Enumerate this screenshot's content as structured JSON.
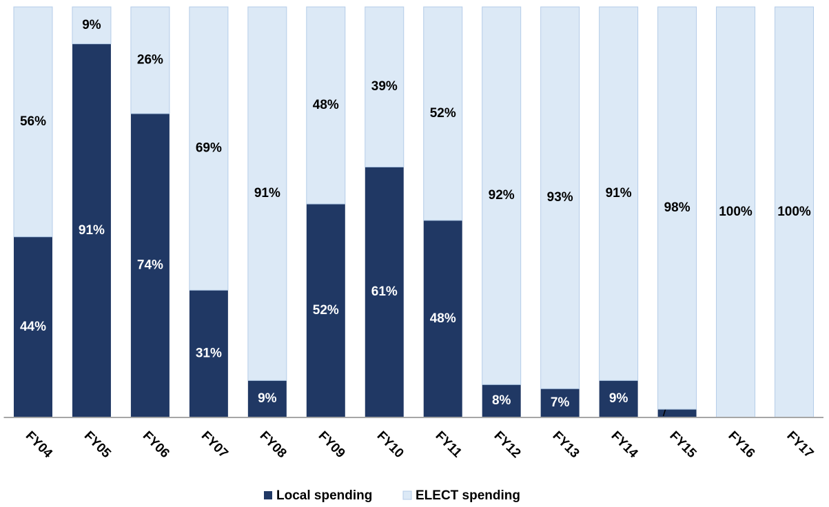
{
  "chart_data": {
    "type": "stacked_bar",
    "categories": [
      "FY04",
      "FY05",
      "FY06",
      "FY07",
      "FY08",
      "FY09",
      "FY10",
      "FY11",
      "FY12",
      "FY13",
      "FY14",
      "FY15",
      "FY16",
      "FY17"
    ],
    "series": [
      {
        "name": "Local spending",
        "color": "#203864",
        "label_color": "#ffffff",
        "values": [
          44,
          91,
          74,
          31,
          9,
          52,
          61,
          48,
          8,
          7,
          9,
          2,
          0,
          0
        ],
        "value_labels": [
          "44%",
          "91%",
          "74%",
          "31%",
          "9%",
          "52%",
          "61%",
          "48%",
          "8%",
          "7%",
          "9%",
          "2%",
          null,
          null
        ]
      },
      {
        "name": "ELECT spending",
        "color": "#dce9f6",
        "label_color": "#000000",
        "values": [
          56,
          9,
          26,
          69,
          91,
          48,
          39,
          52,
          92,
          93,
          91,
          98,
          100,
          100
        ],
        "value_labels": [
          "56%",
          "9%",
          "26%",
          "69%",
          "91%",
          "48%",
          "39%",
          "52%",
          "92%",
          "93%",
          "91%",
          "98%",
          "100%",
          "100%"
        ]
      }
    ],
    "ylim": [
      0,
      100
    ]
  }
}
